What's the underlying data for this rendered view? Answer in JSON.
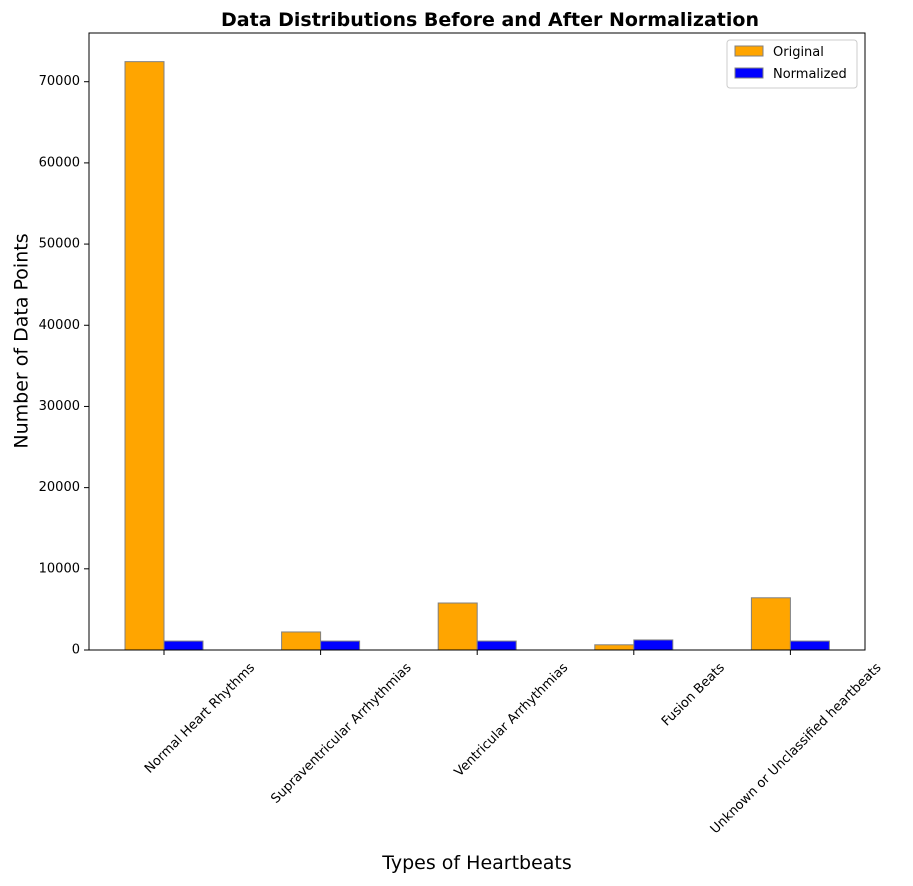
{
  "chart_data": {
    "type": "bar",
    "title": "Data Distributions Before and After Normalization",
    "xlabel": "Types of Heartbeats",
    "ylabel": "Number of Data Points",
    "categories": [
      "Normal Heart Rhythms",
      "Supraventricular Arrhythmias",
      "Ventricular Arrhythmias",
      "Fusion Beats",
      "Unknown or Unclassified heartbeats"
    ],
    "series": [
      {
        "name": "Original",
        "color": "#FFA500",
        "values": [
          72471,
          2223,
          5788,
          641,
          6431
        ]
      },
      {
        "name": "Normalized",
        "color": "#0000FF",
        "values": [
          1100,
          1100,
          1100,
          1241,
          1100
        ]
      }
    ],
    "ylim": [
      0,
      76000
    ],
    "yticks": [
      0,
      10000,
      20000,
      30000,
      40000,
      50000,
      60000,
      70000
    ],
    "ytick_labels": [
      "0",
      "10000",
      "20000",
      "30000",
      "40000",
      "50000",
      "60000",
      "70000"
    ],
    "bar_edge_color": "#808080",
    "x_tick_rotation": 45,
    "grid": false,
    "legend": {
      "position": "top-right",
      "entries": [
        "Original",
        "Normalized"
      ]
    }
  }
}
